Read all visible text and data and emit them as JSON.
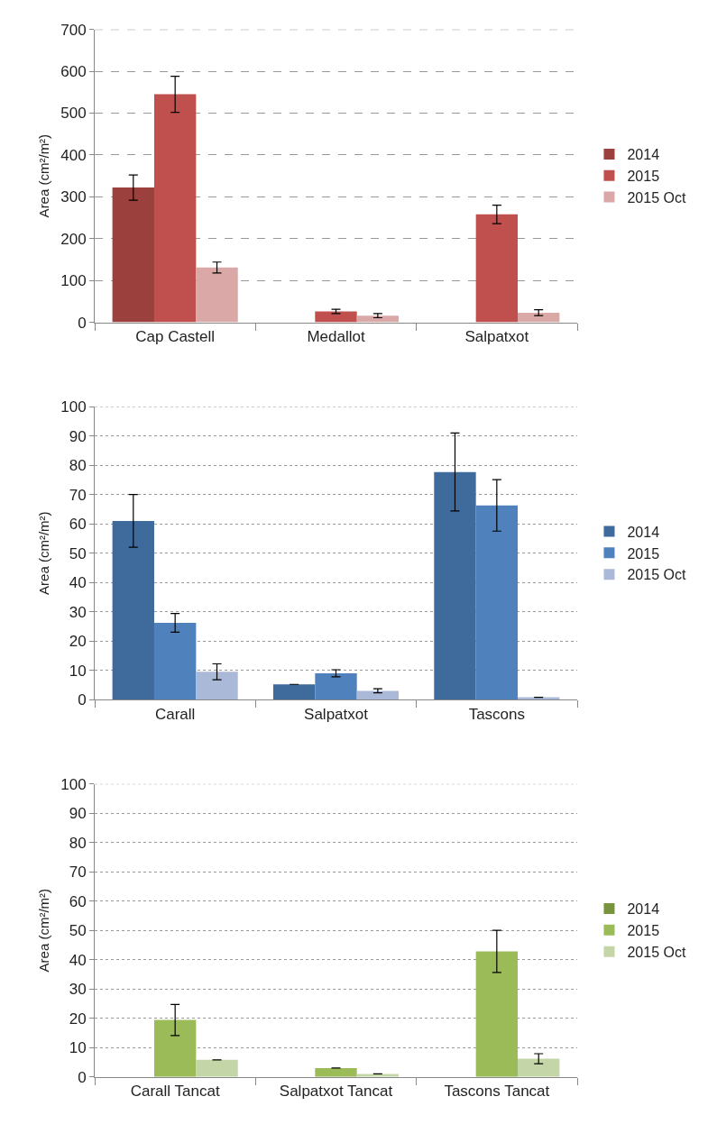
{
  "chart_data": [
    {
      "type": "bar",
      "ylabel": "Area (cm²/m²)",
      "categories": [
        "Cap Castell",
        "Medallot",
        "Salpatxot"
      ],
      "ylim": [
        0,
        700
      ],
      "yticks": [
        0,
        100,
        200,
        300,
        400,
        500,
        600,
        700
      ],
      "grid": "y",
      "legend": "right",
      "series": [
        {
          "name": "2014",
          "color": "#9b403c",
          "values": [
            322,
            null,
            null
          ],
          "errors": [
            30,
            null,
            null
          ]
        },
        {
          "name": "2015",
          "color": "#c0504d",
          "values": [
            545,
            26,
            258
          ],
          "errors": [
            43,
            5,
            22
          ]
        },
        {
          "name": "2015 Oct",
          "color": "#d9a8a7",
          "values": [
            131,
            16,
            23
          ],
          "errors": [
            13,
            5,
            7
          ]
        }
      ]
    },
    {
      "type": "bar",
      "ylabel": "Area (cm²/m²)",
      "categories": [
        "Carall",
        "Salpatxot",
        "Tascons"
      ],
      "ylim": [
        0,
        100
      ],
      "yticks": [
        0,
        10,
        20,
        30,
        40,
        50,
        60,
        70,
        80,
        90,
        100
      ],
      "grid": "y",
      "legend": "right",
      "series": [
        {
          "name": "2014",
          "color": "#3e6a9c",
          "values": [
            61,
            5.2,
            77.7
          ],
          "errors": [
            9,
            null,
            13.3
          ]
        },
        {
          "name": "2015",
          "color": "#4f81bd",
          "values": [
            26.2,
            9,
            66.3
          ],
          "errors": [
            3.2,
            1.2,
            8.8
          ]
        },
        {
          "name": "2015 Oct",
          "color": "#aab9d8",
          "values": [
            9.5,
            3,
            0.8
          ],
          "errors": [
            2.7,
            0.7,
            null
          ]
        }
      ]
    },
    {
      "type": "bar",
      "ylabel": "Area (cm²/m²)",
      "categories": [
        "Carall Tancat",
        "Salpatxot Tancat",
        "Tascons Tancat"
      ],
      "ylim": [
        0,
        100
      ],
      "yticks": [
        0,
        10,
        20,
        30,
        40,
        50,
        60,
        70,
        80,
        90,
        100
      ],
      "grid": "y",
      "legend": "right",
      "series": [
        {
          "name": "2014",
          "color": "#77933c",
          "values": [
            null,
            null,
            null
          ],
          "errors": [
            null,
            null,
            null
          ]
        },
        {
          "name": "2015",
          "color": "#9bbb59",
          "values": [
            19.4,
            3,
            42.8
          ],
          "errors": [
            5.3,
            null,
            7.2
          ]
        },
        {
          "name": "2015 Oct",
          "color": "#c4d6a8",
          "values": [
            5.8,
            1,
            6.2
          ],
          "errors": [
            null,
            null,
            1.7
          ]
        }
      ]
    }
  ]
}
